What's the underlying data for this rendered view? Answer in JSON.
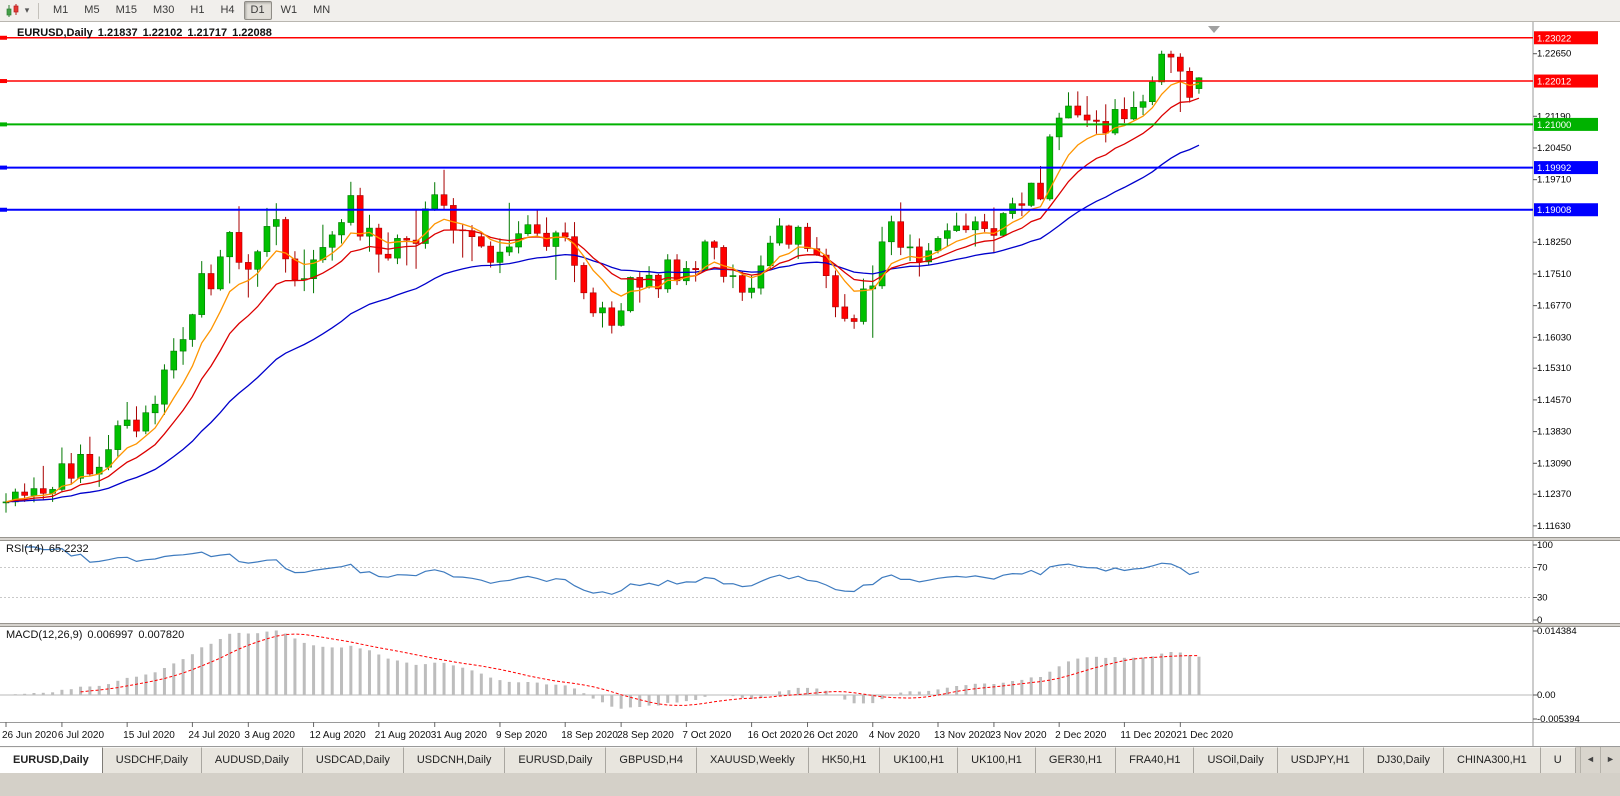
{
  "toolbar": {
    "timeframes": [
      "M1",
      "M5",
      "M15",
      "M30",
      "H1",
      "H4",
      "D1",
      "W1",
      "MN"
    ],
    "active_timeframe": "D1"
  },
  "chart": {
    "symbol": "EURUSD,Daily",
    "open": "1.21837",
    "high": "1.22102",
    "low": "1.21717",
    "close": "1.22088"
  },
  "chart_data": {
    "type": "candlestick",
    "symbol": "EURUSD",
    "timeframe": "Daily",
    "ylim": [
      1.1137,
      1.2332
    ],
    "up_color": "#00C000",
    "up_stroke": "#007800",
    "down_color": "#FF0000",
    "down_stroke": "#A80000",
    "price_ticks": [
      "1.22650",
      "1.21190",
      "1.20450",
      "1.19710",
      "1.18250",
      "1.17510",
      "1.16770",
      "1.16030",
      "1.15310",
      "1.14570",
      "1.13830",
      "1.13090",
      "1.12370",
      "1.11630"
    ],
    "hlines": [
      {
        "price": 1.23022,
        "label": "1.23022",
        "color": "#FF0000",
        "width": 1.5
      },
      {
        "price": 1.22012,
        "label": "1.22012",
        "color": "#FF0000",
        "width": 1.5
      },
      {
        "price": 1.21,
        "label": "1.21000",
        "color": "#00B200",
        "width": 2
      },
      {
        "price": 1.19992,
        "label": "1.19992",
        "color": "#0000FF",
        "width": 2
      },
      {
        "price": 1.19008,
        "label": "1.19008",
        "color": "#0000FF",
        "width": 2
      }
    ],
    "moving_averages": [
      {
        "name": "ma-slow-line",
        "period": 32,
        "color": "#0000CC"
      },
      {
        "name": "ma-medium-line",
        "period": 13,
        "color": "#DC0000"
      },
      {
        "name": "ma-fast-line",
        "period": 7,
        "color": "#FF9500"
      }
    ],
    "date_labels": [
      {
        "label": "26 Jun 2020",
        "i": 0
      },
      {
        "label": "6 Jul 2020",
        "i": 6
      },
      {
        "label": "15 Jul 2020",
        "i": 13
      },
      {
        "label": "24 Jul 2020",
        "i": 20
      },
      {
        "label": "3 Aug 2020",
        "i": 26
      },
      {
        "label": "12 Aug 2020",
        "i": 33
      },
      {
        "label": "21 Aug 2020",
        "i": 40
      },
      {
        "label": "31 Aug 2020",
        "i": 46
      },
      {
        "label": "9 Sep 2020",
        "i": 53
      },
      {
        "label": "18 Sep 2020",
        "i": 60
      },
      {
        "label": "28 Sep 2020",
        "i": 66
      },
      {
        "label": "7 Oct 2020",
        "i": 73
      },
      {
        "label": "16 Oct 2020",
        "i": 80
      },
      {
        "label": "26 Oct 2020",
        "i": 86
      },
      {
        "label": "4 Nov 2020",
        "i": 93
      },
      {
        "label": "13 Nov 2020",
        "i": 100
      },
      {
        "label": "23 Nov 2020",
        "i": 106
      },
      {
        "label": "2 Dec 2020",
        "i": 113
      },
      {
        "label": "11 Dec 2020",
        "i": 120
      },
      {
        "label": "21 Dec 2020",
        "i": 126
      }
    ],
    "candles": [
      [
        1.1218,
        1.1239,
        1.1194,
        1.1219
      ],
      [
        1.1219,
        1.125,
        1.1209,
        1.1242
      ],
      [
        1.1242,
        1.1262,
        1.1219,
        1.1234
      ],
      [
        1.1234,
        1.1276,
        1.1218,
        1.125
      ],
      [
        1.125,
        1.1303,
        1.1224,
        1.1239
      ],
      [
        1.1239,
        1.1254,
        1.1219,
        1.1248
      ],
      [
        1.1248,
        1.1346,
        1.1241,
        1.1308
      ],
      [
        1.1308,
        1.1333,
        1.1259,
        1.1274
      ],
      [
        1.1274,
        1.1353,
        1.1263,
        1.133
      ],
      [
        1.133,
        1.1371,
        1.1279,
        1.1284
      ],
      [
        1.1284,
        1.1325,
        1.1254,
        1.13
      ],
      [
        1.13,
        1.1375,
        1.1293,
        1.1341
      ],
      [
        1.1341,
        1.1409,
        1.1325,
        1.1397
      ],
      [
        1.1397,
        1.1452,
        1.139,
        1.141
      ],
      [
        1.141,
        1.1442,
        1.137,
        1.1384
      ],
      [
        1.1384,
        1.1444,
        1.1377,
        1.1427
      ],
      [
        1.1427,
        1.1467,
        1.14,
        1.1447
      ],
      [
        1.1447,
        1.154,
        1.1422,
        1.1527
      ],
      [
        1.1527,
        1.1601,
        1.1507,
        1.1571
      ],
      [
        1.1571,
        1.1627,
        1.1539,
        1.1598
      ],
      [
        1.1598,
        1.1658,
        1.1581,
        1.1656
      ],
      [
        1.1656,
        1.1781,
        1.1649,
        1.1752
      ],
      [
        1.1752,
        1.1773,
        1.1701,
        1.1716
      ],
      [
        1.1716,
        1.1807,
        1.1712,
        1.1791
      ],
      [
        1.1791,
        1.1851,
        1.1729,
        1.1848
      ],
      [
        1.1848,
        1.1909,
        1.1762,
        1.1778
      ],
      [
        1.1778,
        1.1797,
        1.1696,
        1.1762
      ],
      [
        1.1762,
        1.1807,
        1.1721,
        1.1803
      ],
      [
        1.1803,
        1.1905,
        1.1791,
        1.1862
      ],
      [
        1.1862,
        1.1916,
        1.1818,
        1.1878
      ],
      [
        1.1878,
        1.1884,
        1.1754,
        1.1786
      ],
      [
        1.1786,
        1.1804,
        1.1722,
        1.1737
      ],
      [
        1.1737,
        1.1808,
        1.1711,
        1.174
      ],
      [
        1.174,
        1.1807,
        1.1706,
        1.1784
      ],
      [
        1.1784,
        1.1866,
        1.1777,
        1.1813
      ],
      [
        1.1813,
        1.1851,
        1.1782,
        1.1842
      ],
      [
        1.1842,
        1.1879,
        1.1822,
        1.1871
      ],
      [
        1.1871,
        1.1966,
        1.1864,
        1.1934
      ],
      [
        1.1934,
        1.1952,
        1.1829,
        1.1839
      ],
      [
        1.1839,
        1.1889,
        1.1803,
        1.1858
      ],
      [
        1.1858,
        1.1868,
        1.1754,
        1.1797
      ],
      [
        1.1797,
        1.1848,
        1.1782,
        1.1788
      ],
      [
        1.1788,
        1.1843,
        1.1774,
        1.1834
      ],
      [
        1.1834,
        1.1839,
        1.1771,
        1.183
      ],
      [
        1.183,
        1.1901,
        1.1763,
        1.1822
      ],
      [
        1.1822,
        1.192,
        1.181,
        1.1903
      ],
      [
        1.1903,
        1.1965,
        1.1898,
        1.1936
      ],
      [
        1.1936,
        1.1994,
        1.1901,
        1.1911
      ],
      [
        1.1911,
        1.1928,
        1.1822,
        1.1854
      ],
      [
        1.1854,
        1.1868,
        1.1789,
        1.1852
      ],
      [
        1.1852,
        1.1865,
        1.1781,
        1.1838
      ],
      [
        1.1838,
        1.1849,
        1.1812,
        1.1816
      ],
      [
        1.1816,
        1.1827,
        1.1766,
        1.1778
      ],
      [
        1.1778,
        1.1834,
        1.1753,
        1.1802
      ],
      [
        1.1802,
        1.1917,
        1.1793,
        1.1814
      ],
      [
        1.1814,
        1.1874,
        1.1799,
        1.1845
      ],
      [
        1.1845,
        1.1888,
        1.184,
        1.1866
      ],
      [
        1.1866,
        1.1901,
        1.1838,
        1.1846
      ],
      [
        1.1846,
        1.1883,
        1.1805,
        1.1815
      ],
      [
        1.1815,
        1.1852,
        1.1737,
        1.1847
      ],
      [
        1.1847,
        1.1871,
        1.1827,
        1.1838
      ],
      [
        1.1838,
        1.1872,
        1.1732,
        1.1771
      ],
      [
        1.1771,
        1.1778,
        1.1692,
        1.1707
      ],
      [
        1.1707,
        1.1719,
        1.1651,
        1.166
      ],
      [
        1.166,
        1.1686,
        1.1626,
        1.1672
      ],
      [
        1.1672,
        1.1687,
        1.1612,
        1.1631
      ],
      [
        1.1631,
        1.1683,
        1.1628,
        1.1665
      ],
      [
        1.1665,
        1.1745,
        1.1661,
        1.1743
      ],
      [
        1.1743,
        1.1755,
        1.1684,
        1.172
      ],
      [
        1.172,
        1.1769,
        1.1717,
        1.1748
      ],
      [
        1.1748,
        1.1751,
        1.1695,
        1.1716
      ],
      [
        1.1716,
        1.1797,
        1.1707,
        1.1784
      ],
      [
        1.1784,
        1.1797,
        1.1725,
        1.1735
      ],
      [
        1.1735,
        1.1781,
        1.1725,
        1.1764
      ],
      [
        1.1764,
        1.1781,
        1.1733,
        1.1761
      ],
      [
        1.1761,
        1.1831,
        1.1758,
        1.1826
      ],
      [
        1.1826,
        1.183,
        1.1785,
        1.1813
      ],
      [
        1.1813,
        1.1818,
        1.1731,
        1.1745
      ],
      [
        1.1745,
        1.1773,
        1.1718,
        1.1747
      ],
      [
        1.1747,
        1.1758,
        1.1688,
        1.1708
      ],
      [
        1.1708,
        1.1747,
        1.1694,
        1.1718
      ],
      [
        1.1718,
        1.1794,
        1.1703,
        1.177
      ],
      [
        1.177,
        1.184,
        1.1762,
        1.1823
      ],
      [
        1.1823,
        1.1881,
        1.1817,
        1.1863
      ],
      [
        1.1863,
        1.1866,
        1.181,
        1.182
      ],
      [
        1.182,
        1.1864,
        1.1786,
        1.186
      ],
      [
        1.186,
        1.187,
        1.1803,
        1.181
      ],
      [
        1.181,
        1.1837,
        1.1793,
        1.1795
      ],
      [
        1.1795,
        1.181,
        1.1718,
        1.1747
      ],
      [
        1.1747,
        1.1759,
        1.165,
        1.1674
      ],
      [
        1.1674,
        1.1704,
        1.164,
        1.1647
      ],
      [
        1.1647,
        1.1656,
        1.1623,
        1.164
      ],
      [
        1.164,
        1.174,
        1.1633,
        1.1716
      ],
      [
        1.1716,
        1.1771,
        1.1602,
        1.1723
      ],
      [
        1.1723,
        1.1861,
        1.1716,
        1.1826
      ],
      [
        1.1826,
        1.1887,
        1.1795,
        1.1873
      ],
      [
        1.1873,
        1.1918,
        1.1795,
        1.1813
      ],
      [
        1.1813,
        1.1843,
        1.1781,
        1.1814
      ],
      [
        1.1814,
        1.1834,
        1.1745,
        1.1779
      ],
      [
        1.1779,
        1.1823,
        1.1771,
        1.1805
      ],
      [
        1.1805,
        1.1839,
        1.1799,
        1.1834
      ],
      [
        1.1834,
        1.1869,
        1.1814,
        1.1852
      ],
      [
        1.1852,
        1.1894,
        1.1849,
        1.1863
      ],
      [
        1.1863,
        1.1892,
        1.1847,
        1.1854
      ],
      [
        1.1854,
        1.1885,
        1.1815,
        1.1873
      ],
      [
        1.1873,
        1.1891,
        1.1849,
        1.1857
      ],
      [
        1.1857,
        1.1906,
        1.18,
        1.1841
      ],
      [
        1.1841,
        1.1895,
        1.1838,
        1.1892
      ],
      [
        1.1892,
        1.1929,
        1.188,
        1.1915
      ],
      [
        1.1915,
        1.1941,
        1.1886,
        1.1911
      ],
      [
        1.1911,
        1.1964,
        1.1907,
        1.1963
      ],
      [
        1.1963,
        1.2003,
        1.1923,
        1.1926
      ],
      [
        1.1926,
        1.2077,
        1.1922,
        1.2071
      ],
      [
        1.2071,
        1.2127,
        1.204,
        1.2115
      ],
      [
        1.2115,
        1.2175,
        1.2114,
        1.2143
      ],
      [
        1.2143,
        1.2177,
        1.2116,
        1.2122
      ],
      [
        1.2122,
        1.2166,
        1.2094,
        1.211
      ],
      [
        1.211,
        1.2133,
        1.2078,
        1.2107
      ],
      [
        1.2107,
        1.2147,
        1.2058,
        1.208
      ],
      [
        1.208,
        1.2159,
        1.2075,
        1.2135
      ],
      [
        1.2135,
        1.2163,
        1.2103,
        1.2113
      ],
      [
        1.2113,
        1.2177,
        1.211,
        1.214
      ],
      [
        1.214,
        1.2169,
        1.2122,
        1.2153
      ],
      [
        1.2153,
        1.2212,
        1.2145,
        1.2199
      ],
      [
        1.2199,
        1.2272,
        1.2192,
        1.2264
      ],
      [
        1.2264,
        1.2272,
        1.222,
        1.2257
      ],
      [
        1.2257,
        1.2266,
        1.2129,
        1.2224
      ],
      [
        1.2224,
        1.2233,
        1.2151,
        1.2163
      ],
      [
        1.21837,
        1.22102,
        1.21717,
        1.22088
      ]
    ],
    "indicators": {
      "rsi": {
        "label": "RSI(14)",
        "value": "65.2232",
        "period": 14,
        "levels": [
          100,
          70,
          30,
          0
        ],
        "color": "#3E7BBF"
      },
      "macd": {
        "label": "MACD(12,26,9)",
        "value": "0.006997",
        "signal_value": "0.007820",
        "fast": 12,
        "slow": 26,
        "signal": 9,
        "range": [
          -0.005394,
          0.014384
        ],
        "scale_ticks": [
          "0.014384",
          "0.00",
          "-0.005394"
        ],
        "hist_color": "#BDBDBD",
        "signal_color": "#FF0000"
      }
    }
  },
  "tabs": {
    "items": [
      "EURUSD,Daily",
      "USDCHF,Daily",
      "AUDUSD,Daily",
      "USDCAD,Daily",
      "USDCNH,Daily",
      "EURUSD,Daily",
      "GBPUSD,H4",
      "XAUUSD,Weekly",
      "HK50,H1",
      "UK100,H1",
      "UK100,H1",
      "GER30,H1",
      "FRA40,H1",
      "USOil,Daily",
      "USDJPY,H1",
      "DJ30,Daily",
      "CHINA300,H1",
      "U"
    ],
    "active_index": 0
  },
  "tab_scroll": {
    "left": "◄",
    "right": "►"
  }
}
